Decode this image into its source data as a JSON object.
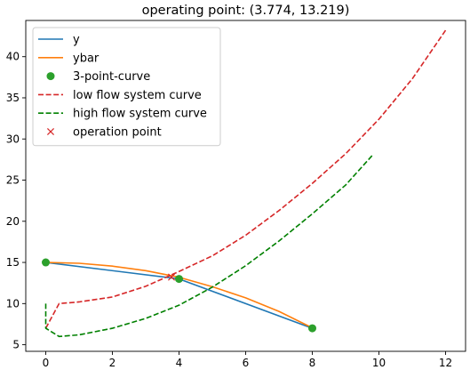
{
  "chart_data": {
    "type": "line",
    "title": "operating point: (3.774, 13.219)",
    "xlabel": "",
    "ylabel": "",
    "xlim": [
      -0.6,
      12.6
    ],
    "ylim": [
      4.2,
      44.4
    ],
    "xticks": [
      0,
      2,
      4,
      6,
      8,
      10,
      12
    ],
    "yticks": [
      5,
      10,
      15,
      20,
      25,
      30,
      35,
      40
    ],
    "grid": false,
    "legend_placement": "top-left",
    "series": [
      {
        "name": "y",
        "style": "line",
        "color": "#1f77b4",
        "x": [
          0,
          4,
          8
        ],
        "y": [
          15,
          13,
          7
        ]
      },
      {
        "name": "ybar",
        "style": "line",
        "color": "#ff7f0e",
        "x": [
          0,
          1,
          2,
          3,
          4,
          5,
          6,
          7,
          8
        ],
        "y": [
          15.0,
          14.9,
          14.55,
          14.0,
          13.2,
          12.05,
          10.7,
          9.05,
          7.05
        ]
      },
      {
        "name": "3-point-curve",
        "style": "markers",
        "marker": "circle",
        "color": "#2ca02c",
        "x": [
          0,
          4,
          8
        ],
        "y": [
          15,
          13,
          7
        ]
      },
      {
        "name": "low flow system curve",
        "style": "dashed",
        "color": "#d62728",
        "x": [
          0,
          0.4,
          1,
          2,
          3,
          4,
          5,
          6,
          7,
          8,
          9,
          10,
          11,
          12
        ],
        "y": [
          7,
          10,
          10.2,
          10.8,
          12.1,
          13.9,
          15.8,
          18.3,
          21.3,
          24.6,
          28.2,
          32.4,
          37.3,
          43.2
        ]
      },
      {
        "name": "high flow system curve",
        "style": "dashed",
        "color": "#008000",
        "x": [
          0,
          0,
          0.4,
          1,
          2,
          3,
          4,
          5,
          6,
          7,
          8,
          9,
          9.8
        ],
        "y": [
          10,
          7,
          6,
          6.2,
          7.0,
          8.2,
          9.8,
          12.0,
          14.6,
          17.6,
          20.9,
          24.4,
          28.0
        ]
      },
      {
        "name": "operation point",
        "style": "markers",
        "marker": "x",
        "color": "#d62728",
        "x": [
          3.774
        ],
        "y": [
          13.219
        ]
      }
    ]
  }
}
